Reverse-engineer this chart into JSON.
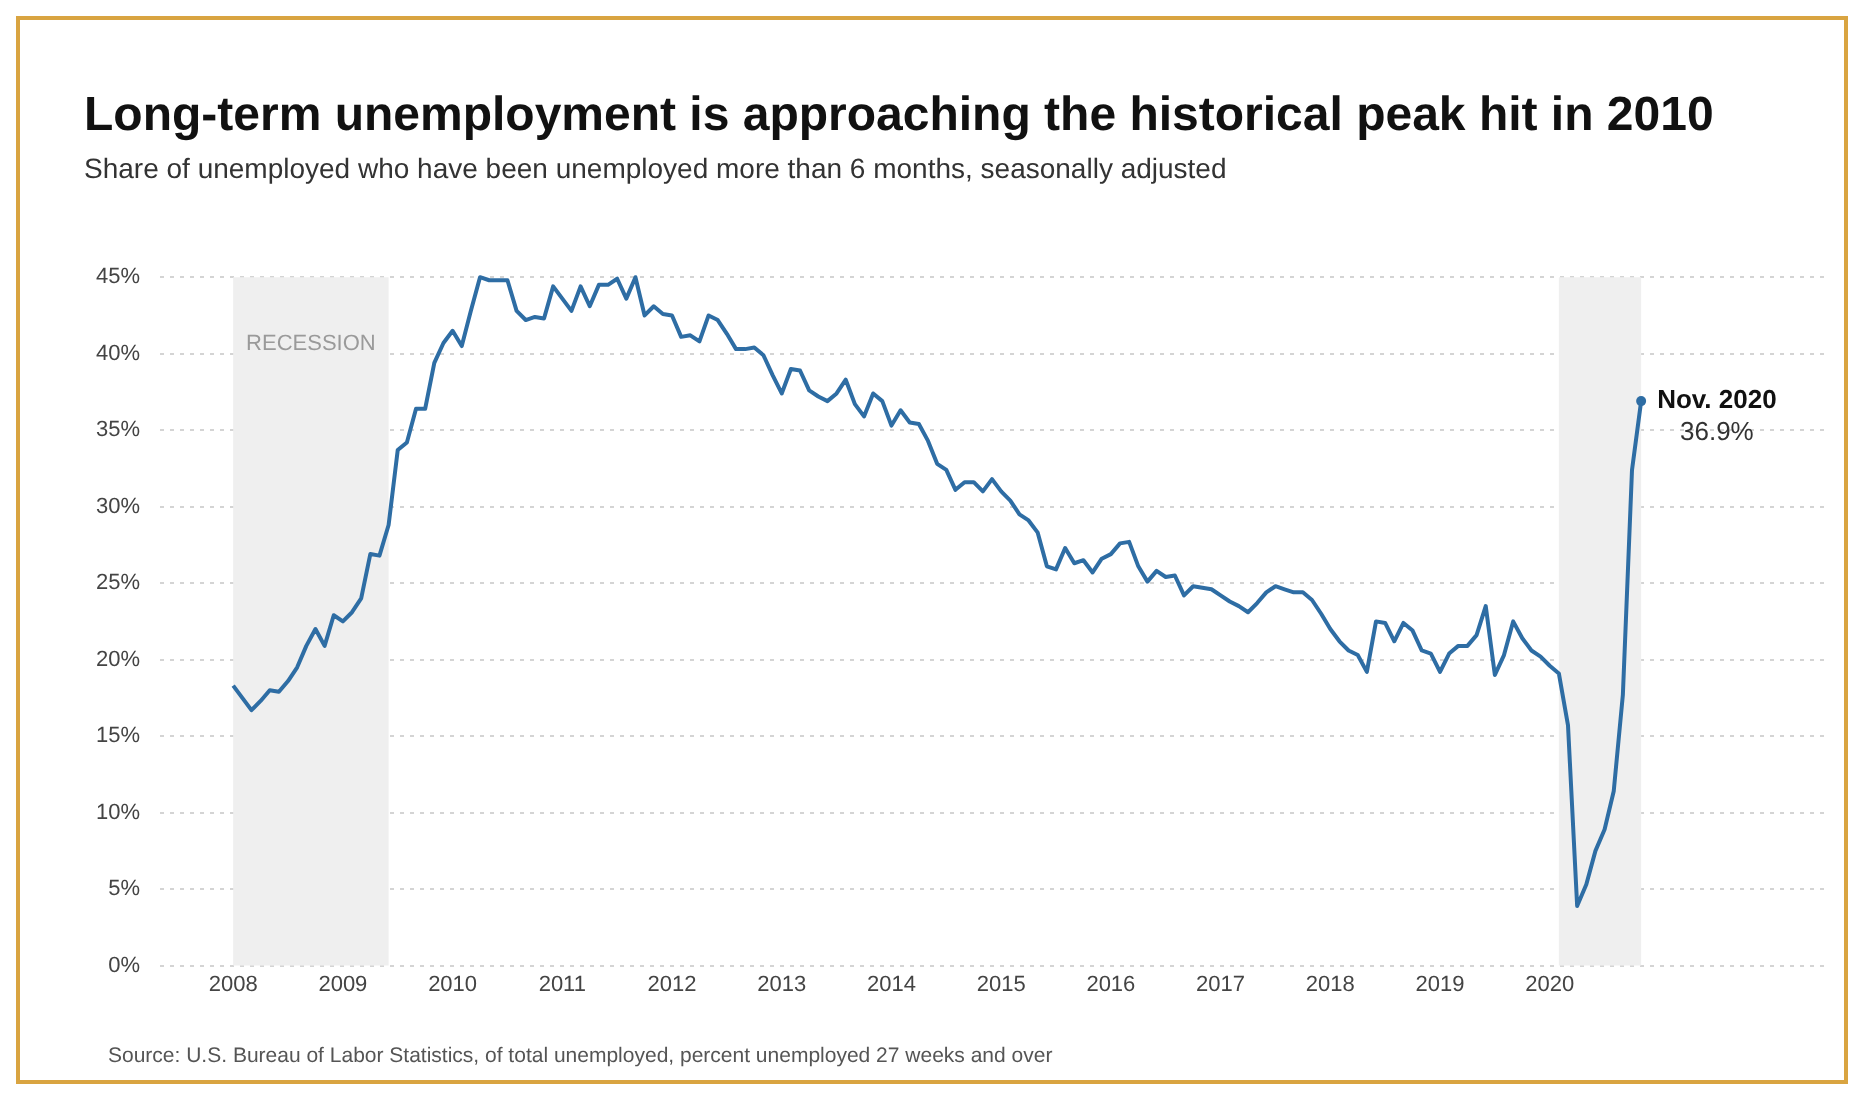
{
  "chart_data": {
    "type": "line",
    "title": "Long-term unemployment is approaching the historical peak hit in 2010",
    "subtitle": "Share of unemployed who have been unemployed more than 6 months, seasonally adjusted",
    "x": [
      "2008-01",
      "2008-02",
      "2008-03",
      "2008-04",
      "2008-05",
      "2008-06",
      "2008-07",
      "2008-08",
      "2008-09",
      "2008-10",
      "2008-11",
      "2008-12",
      "2009-01",
      "2009-02",
      "2009-03",
      "2009-04",
      "2009-05",
      "2009-06",
      "2009-07",
      "2009-08",
      "2009-09",
      "2009-10",
      "2009-11",
      "2009-12",
      "2010-01",
      "2010-02",
      "2010-03",
      "2010-04",
      "2010-05",
      "2010-06",
      "2010-07",
      "2010-08",
      "2010-09",
      "2010-10",
      "2010-11",
      "2010-12",
      "2011-01",
      "2011-02",
      "2011-03",
      "2011-04",
      "2011-05",
      "2011-06",
      "2011-07",
      "2011-08",
      "2011-09",
      "2011-10",
      "2011-11",
      "2011-12",
      "2012-01",
      "2012-02",
      "2012-03",
      "2012-04",
      "2012-05",
      "2012-06",
      "2012-07",
      "2012-08",
      "2012-09",
      "2012-10",
      "2012-11",
      "2012-12",
      "2013-01",
      "2013-02",
      "2013-03",
      "2013-04",
      "2013-05",
      "2013-06",
      "2013-07",
      "2013-08",
      "2013-09",
      "2013-10",
      "2013-11",
      "2013-12",
      "2014-01",
      "2014-02",
      "2014-03",
      "2014-04",
      "2014-05",
      "2014-06",
      "2014-07",
      "2014-08",
      "2014-09",
      "2014-10",
      "2014-11",
      "2014-12",
      "2015-01",
      "2015-02",
      "2015-03",
      "2015-04",
      "2015-05",
      "2015-06",
      "2015-07",
      "2015-08",
      "2015-09",
      "2015-10",
      "2015-11",
      "2015-12",
      "2016-01",
      "2016-02",
      "2016-03",
      "2016-04",
      "2016-05",
      "2016-06",
      "2016-07",
      "2016-08",
      "2016-09",
      "2016-10",
      "2016-11",
      "2016-12",
      "2017-01",
      "2017-02",
      "2017-03",
      "2017-04",
      "2017-05",
      "2017-06",
      "2017-07",
      "2017-08",
      "2017-09",
      "2017-10",
      "2017-11",
      "2017-12",
      "2018-01",
      "2018-02",
      "2018-03",
      "2018-04",
      "2018-05",
      "2018-06",
      "2018-07",
      "2018-08",
      "2018-09",
      "2018-10",
      "2018-11",
      "2018-12",
      "2019-01",
      "2019-02",
      "2019-03",
      "2019-04",
      "2019-05",
      "2019-06",
      "2019-07",
      "2019-08",
      "2019-09",
      "2019-10",
      "2019-11",
      "2019-12",
      "2020-01",
      "2020-02",
      "2020-03",
      "2020-04",
      "2020-05",
      "2020-06",
      "2020-07",
      "2020-08",
      "2020-09",
      "2020-10",
      "2020-11"
    ],
    "series": [
      {
        "color": "#2e6da4",
        "values": [
          18.3,
          17.5,
          16.7,
          17.3,
          18.0,
          17.9,
          18.6,
          19.5,
          20.9,
          22.0,
          20.9,
          22.9,
          22.5,
          23.1,
          24.0,
          26.9,
          26.8,
          28.8,
          33.7,
          34.2,
          36.4,
          36.4,
          39.4,
          40.7,
          41.5,
          40.5,
          42.8,
          45.0,
          44.8,
          44.8,
          44.8,
          42.8,
          42.2,
          42.4,
          42.3,
          44.4,
          43.6,
          42.8,
          44.4,
          43.1,
          44.5,
          44.5,
          44.9,
          43.6,
          45.0,
          42.5,
          43.1,
          42.6,
          42.5,
          41.1,
          41.2,
          40.8,
          42.5,
          42.2,
          41.3,
          40.3,
          40.3,
          40.4,
          39.9,
          38.6,
          37.4,
          39.0,
          38.9,
          37.6,
          37.2,
          36.9,
          37.4,
          38.3,
          36.7,
          35.9,
          37.4,
          36.9,
          35.3,
          36.3,
          35.5,
          35.4,
          34.3,
          32.8,
          32.4,
          31.1,
          31.6,
          31.6,
          31.0,
          31.8,
          31.0,
          30.4,
          29.5,
          29.1,
          28.3,
          26.1,
          25.9,
          27.3,
          26.3,
          26.5,
          25.7,
          26.6,
          26.9,
          27.6,
          27.7,
          26.1,
          25.1,
          25.8,
          25.4,
          25.5,
          24.2,
          24.8,
          24.7,
          24.6,
          24.2,
          23.8,
          23.5,
          23.1,
          23.7,
          24.4,
          24.8,
          24.6,
          24.4,
          24.4,
          23.9,
          23.0,
          22.0,
          21.2,
          20.6,
          20.3,
          19.2,
          22.5,
          22.4,
          21.2,
          22.4,
          21.9,
          20.6,
          20.4,
          19.2,
          20.4,
          20.9,
          20.9,
          21.6,
          23.5,
          19.0,
          20.3,
          22.5,
          21.4,
          20.6,
          20.2,
          19.6,
          19.1,
          15.7,
          3.9,
          5.3,
          7.5,
          8.9,
          11.4,
          17.7,
          32.4,
          36.9
        ]
      }
    ],
    "xlim": [
      "2007-05",
      "2022-07"
    ],
    "xticks": [
      "2008",
      "2009",
      "2010",
      "2011",
      "2012",
      "2013",
      "2014",
      "2015",
      "2016",
      "2017",
      "2018",
      "2019",
      "2020"
    ],
    "ylim": [
      0,
      45
    ],
    "yticks": [
      {
        "value": 0,
        "label": "0%"
      },
      {
        "value": 5,
        "label": "5%"
      },
      {
        "value": 10,
        "label": "10%"
      },
      {
        "value": 15,
        "label": "15%"
      },
      {
        "value": 20,
        "label": "20%"
      },
      {
        "value": 25,
        "label": "25%"
      },
      {
        "value": 30,
        "label": "30%"
      },
      {
        "value": 35,
        "label": "35%"
      },
      {
        "value": 40,
        "label": "40%"
      },
      {
        "value": 45,
        "label": "45%"
      }
    ],
    "bands": [
      {
        "axis": "x",
        "from": "2008-01",
        "to": "2009-06",
        "label": "RECESSION",
        "color": "#efefef"
      },
      {
        "axis": "x",
        "from": "2020-02",
        "to": "2020-11",
        "color": "#efefef"
      }
    ],
    "annotations": [
      {
        "text": "Nov. 2020\n36.9%",
        "x": "2020-11",
        "y": 36.9
      },
      "Source: U.S. Bureau of Labor Statistics, of total unemployed, percent unemployed 27 weeks and over"
    ],
    "grid": "y",
    "legend": false,
    "marker": "none",
    "line_style": "solid"
  }
}
